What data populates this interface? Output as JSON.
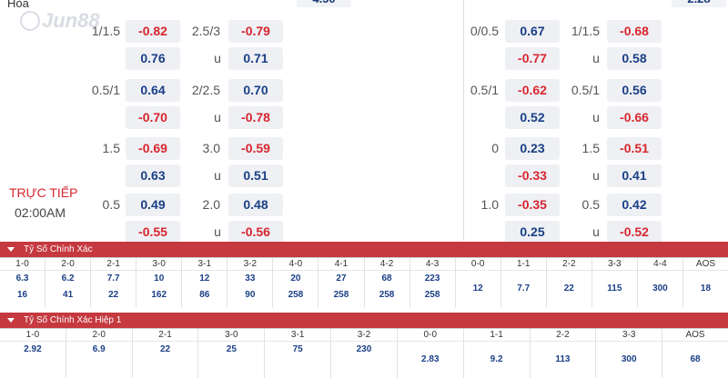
{
  "header": {
    "left_label": "Hòa",
    "box_mid": "4.50",
    "box_right": "2.28"
  },
  "logo": {
    "text": "Jun88"
  },
  "status": {
    "live": "TRỰC TIẾP",
    "time": "02:00AM"
  },
  "left_rows": [
    {
      "hcap": "1/1.5",
      "h1": "-0.82",
      "h2": "0.76",
      "ou": "2.5/3",
      "u": "u",
      "o1": "-0.79",
      "o2": "0.71"
    },
    {
      "hcap": "0.5/1",
      "h1": "0.64",
      "h2": "-0.70",
      "ou": "2/2.5",
      "u": "u",
      "o1": "0.70",
      "o2": "-0.78"
    },
    {
      "hcap": "1.5",
      "h1": "-0.69",
      "h2": "0.63",
      "ou": "3.0",
      "u": "u",
      "o1": "-0.59",
      "o2": "0.51"
    },
    {
      "hcap": "0.5",
      "h1": "0.49",
      "h2": "-0.55",
      "ou": "2.0",
      "u": "u",
      "o1": "0.48",
      "o2": "-0.56"
    }
  ],
  "right_rows": [
    {
      "hcap": "0/0.5",
      "h1": "0.67",
      "h2": "-0.77",
      "ou": "1/1.5",
      "u": "u",
      "o1": "-0.68",
      "o2": "0.58"
    },
    {
      "hcap": "0.5/1",
      "h1": "-0.62",
      "h2": "0.52",
      "ou": "0.5/1",
      "u": "u",
      "o1": "0.56",
      "o2": "-0.66"
    },
    {
      "hcap": "0",
      "h1": "0.23",
      "h2": "-0.33",
      "ou": "1.5",
      "u": "u",
      "o1": "-0.51",
      "o2": "0.41"
    },
    {
      "hcap": "1.0",
      "h1": "-0.35",
      "h2": "0.25",
      "ou": "0.5",
      "u": "u",
      "o1": "0.42",
      "o2": "-0.52"
    }
  ],
  "section1": {
    "title": "Tỷ Số Chính Xác",
    "cols": [
      {
        "h": "1-0",
        "a": "6.3",
        "b": "16"
      },
      {
        "h": "2-0",
        "a": "6.2",
        "b": "41"
      },
      {
        "h": "2-1",
        "a": "7.7",
        "b": "22"
      },
      {
        "h": "3-0",
        "a": "10",
        "b": "162"
      },
      {
        "h": "3-1",
        "a": "12",
        "b": "86"
      },
      {
        "h": "3-2",
        "a": "33",
        "b": "90"
      },
      {
        "h": "4-0",
        "a": "20",
        "b": "258"
      },
      {
        "h": "4-1",
        "a": "27",
        "b": "258"
      },
      {
        "h": "4-2",
        "a": "68",
        "b": "258"
      },
      {
        "h": "4-3",
        "a": "223",
        "b": "258"
      },
      {
        "h": "0-0",
        "m": "12"
      },
      {
        "h": "1-1",
        "m": "7.7"
      },
      {
        "h": "2-2",
        "m": "22"
      },
      {
        "h": "3-3",
        "m": "115"
      },
      {
        "h": "4-4",
        "m": "300"
      },
      {
        "h": "AOS",
        "m": "18"
      }
    ]
  },
  "section2": {
    "title": "Tỷ Số Chính Xác Hiệp 1",
    "cols": [
      {
        "h": "1-0",
        "a": "2.92"
      },
      {
        "h": "2-0",
        "a": "6.9"
      },
      {
        "h": "2-1",
        "a": "22"
      },
      {
        "h": "3-0",
        "a": "25"
      },
      {
        "h": "3-1",
        "a": "75"
      },
      {
        "h": "3-2",
        "a": "230"
      },
      {
        "h": "0-0",
        "m": "2.83"
      },
      {
        "h": "1-1",
        "m": "9.2"
      },
      {
        "h": "2-2",
        "m": "113"
      },
      {
        "h": "3-3",
        "m": "300"
      },
      {
        "h": "AOS",
        "m": "68"
      }
    ]
  },
  "colors": {
    "negative": "#d8262f",
    "positive": "#1a3f86",
    "bar": "#c5393f"
  }
}
